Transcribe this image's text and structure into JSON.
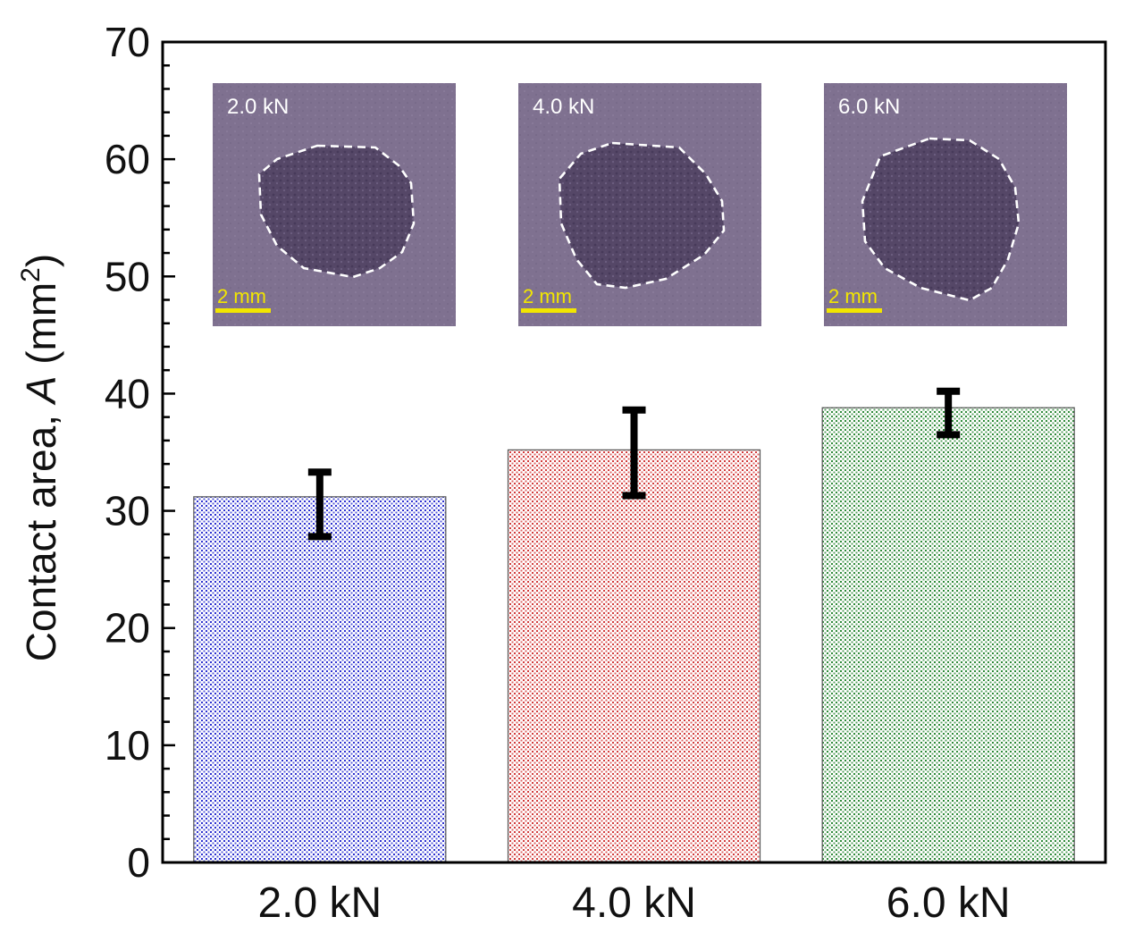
{
  "chart_data": {
    "type": "bar",
    "categories": [
      "2.0 kN",
      "4.0 kN",
      "6.0 kN"
    ],
    "values": [
      31.2,
      35.2,
      38.8
    ],
    "errors": [
      {
        "low": 27.8,
        "high": 33.3
      },
      {
        "low": 31.3,
        "high": 38.6
      },
      {
        "low": 36.5,
        "high": 40.2
      }
    ],
    "title": "",
    "ylabel": {
      "prefix": "Contact area, ",
      "variable": "A",
      "unit_open": " (mm",
      "unit_sup": "2",
      "unit_close": ")"
    },
    "xlabel": "",
    "ylim": [
      0,
      70
    ],
    "yticks": [
      0,
      10,
      20,
      30,
      40,
      50,
      60,
      70
    ],
    "minor_tick_step": 2,
    "grid": false,
    "legend": "none",
    "bar_colors": [
      "#2b2fd0",
      "#d23a3a",
      "#2e8a38"
    ],
    "error_bar_color": "#000000",
    "insets": [
      {
        "label": "2.0 kN",
        "scale_label": "2 mm"
      },
      {
        "label": "4.0 kN",
        "scale_label": "2 mm"
      },
      {
        "label": "6.0 kN",
        "scale_label": "2 mm"
      }
    ],
    "inset_outline_color": "#ffffff",
    "scale_bar_color": "#f2e600",
    "inset_bg_color": "#7f7190",
    "inset_spot_color": "#4e4060"
  }
}
